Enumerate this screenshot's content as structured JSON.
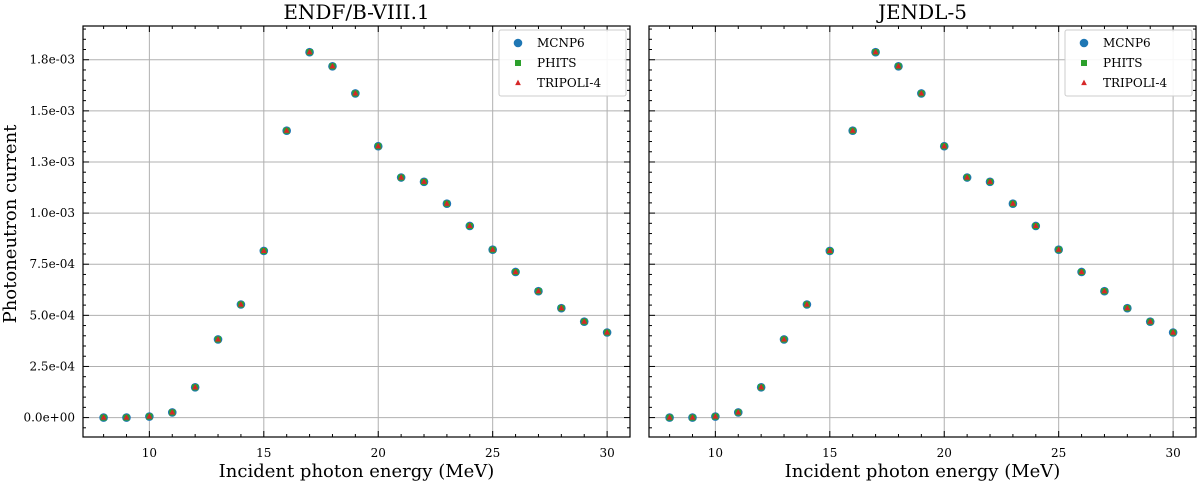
{
  "figure": {
    "ylabel": "Photoneutron current",
    "xlabel": "Incident photon energy (MeV)"
  },
  "colors": {
    "MCNP6": "#1f77b4",
    "PHITS": "#2ca02c",
    "TRIPOLI-4": "#d62728",
    "grid": "#b0b0b0"
  },
  "chart_data": [
    {
      "type": "scatter",
      "title": "ENDF/B-VIII.1",
      "xlabel": "Incident photon energy (MeV)",
      "ylabel": "Photoneutron current",
      "xlim": [
        7.1,
        31.0
      ],
      "ylim": [
        -9.5e-05,
        0.001915
      ],
      "xticks": [
        10,
        15,
        20,
        25,
        30
      ],
      "yticks": [
        0,
        0.00025,
        0.0005,
        0.00075,
        0.001,
        0.00125,
        0.0015,
        0.00175
      ],
      "ytick_labels": [
        "0.0e+00",
        "2.5e-04",
        "5.0e-04",
        "7.5e-04",
        "1.0e-03",
        "1.3e-03",
        "1.5e-03",
        "1.8e-03"
      ],
      "grid": true,
      "legend_position": "top-right",
      "x": [
        8,
        9,
        10,
        11,
        12,
        13,
        14,
        15,
        16,
        17,
        18,
        19,
        20,
        21,
        22,
        23,
        24,
        25,
        26,
        27,
        28,
        29,
        30
      ],
      "series": [
        {
          "name": "MCNP6",
          "marker": "circle",
          "values": [
            0.0,
            0.0,
            5e-06,
            2.5e-05,
            0.000148,
            0.000382,
            0.000553,
            0.000815,
            0.001403,
            0.001787,
            0.001718,
            0.001585,
            0.001327,
            0.001174,
            0.001153,
            0.001046,
            0.000937,
            0.000821,
            0.000712,
            0.000618,
            0.000535,
            0.000469,
            0.000416
          ]
        },
        {
          "name": "PHITS",
          "marker": "square",
          "values": [
            0.0,
            0.0,
            5e-06,
            2.5e-05,
            0.000148,
            0.000382,
            0.000553,
            0.000815,
            0.001403,
            0.001787,
            0.001718,
            0.001585,
            0.001327,
            0.001174,
            0.001153,
            0.001046,
            0.000937,
            0.000821,
            0.000712,
            0.000618,
            0.000535,
            0.000469,
            0.000416
          ]
        },
        {
          "name": "TRIPOLI-4",
          "marker": "triangle",
          "values": [
            0.0,
            0.0,
            5e-06,
            2.5e-05,
            0.000148,
            0.000382,
            0.000553,
            0.000815,
            0.001403,
            0.001787,
            0.001718,
            0.001585,
            0.001327,
            0.001174,
            0.001153,
            0.001046,
            0.000937,
            0.000821,
            0.000712,
            0.000618,
            0.000535,
            0.000469,
            0.000416
          ]
        }
      ]
    },
    {
      "type": "scatter",
      "title": "JENDL-5",
      "xlabel": "Incident photon energy (MeV)",
      "ylabel": "",
      "xlim": [
        7.1,
        31.0
      ],
      "ylim": [
        -9.5e-05,
        0.001915
      ],
      "xticks": [
        10,
        15,
        20,
        25,
        30
      ],
      "yticks": [
        0,
        0.00025,
        0.0005,
        0.00075,
        0.001,
        0.00125,
        0.0015,
        0.00175
      ],
      "ytick_labels": [],
      "grid": true,
      "legend_position": "top-right",
      "x": [
        8,
        9,
        10,
        11,
        12,
        13,
        14,
        15,
        16,
        17,
        18,
        19,
        20,
        21,
        22,
        23,
        24,
        25,
        26,
        27,
        28,
        29,
        30
      ],
      "series": [
        {
          "name": "MCNP6",
          "marker": "circle",
          "values": [
            0.0,
            0.0,
            5e-06,
            2.5e-05,
            0.000148,
            0.000382,
            0.000553,
            0.000815,
            0.001403,
            0.001787,
            0.001718,
            0.001585,
            0.001327,
            0.001174,
            0.001153,
            0.001046,
            0.000937,
            0.000821,
            0.000712,
            0.000618,
            0.000535,
            0.000469,
            0.000416
          ]
        },
        {
          "name": "PHITS",
          "marker": "square",
          "values": [
            0.0,
            0.0,
            5e-06,
            2.5e-05,
            0.000148,
            0.000382,
            0.000553,
            0.000815,
            0.001403,
            0.001787,
            0.001718,
            0.001585,
            0.001327,
            0.001174,
            0.001153,
            0.001046,
            0.000937,
            0.000821,
            0.000712,
            0.000618,
            0.000535,
            0.000469,
            0.000416
          ]
        },
        {
          "name": "TRIPOLI-4",
          "marker": "triangle",
          "values": [
            0.0,
            0.0,
            5e-06,
            2.5e-05,
            0.000148,
            0.000382,
            0.000553,
            0.000815,
            0.001403,
            0.001787,
            0.001718,
            0.001585,
            0.001327,
            0.001174,
            0.001153,
            0.001046,
            0.000937,
            0.000821,
            0.000712,
            0.000618,
            0.000535,
            0.000469,
            0.000416
          ]
        }
      ]
    }
  ]
}
